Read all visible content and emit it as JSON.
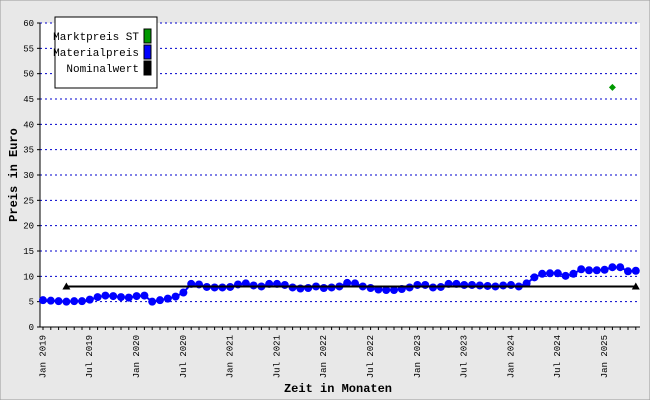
{
  "chart_data": {
    "type": "line",
    "ylabel": "Preis in Euro",
    "xlabel": "Zeit in Monaten",
    "categories": [
      "Jan 2019",
      null,
      null,
      null,
      null,
      null,
      "Jul 2019",
      null,
      null,
      null,
      null,
      null,
      "Jan 2020",
      null,
      null,
      null,
      null,
      null,
      "Jul 2020",
      null,
      null,
      null,
      null,
      null,
      "Jan 2021",
      null,
      null,
      null,
      null,
      null,
      "Jul 2021",
      null,
      null,
      null,
      null,
      null,
      "Jan 2022",
      null,
      null,
      null,
      null,
      null,
      "Jul 2022",
      null,
      null,
      null,
      null,
      null,
      "Jan 2023",
      null,
      null,
      null,
      null,
      null,
      "Jul 2023",
      null,
      null,
      null,
      null,
      null,
      "Jan 2024",
      null,
      null,
      null,
      null,
      null,
      "Jul 2024",
      null,
      null,
      null,
      null,
      null,
      "Jan 2025",
      null,
      null,
      null,
      null
    ],
    "series": [
      {
        "name": "Marktpreis ST",
        "color": "#009900",
        "marker": "diamond",
        "values": [
          null,
          null,
          null,
          null,
          null,
          null,
          null,
          null,
          null,
          null,
          null,
          null,
          null,
          null,
          null,
          null,
          null,
          null,
          null,
          null,
          null,
          null,
          null,
          null,
          null,
          null,
          null,
          null,
          null,
          null,
          null,
          null,
          null,
          null,
          null,
          null,
          null,
          null,
          null,
          null,
          null,
          null,
          null,
          null,
          null,
          null,
          null,
          null,
          null,
          null,
          null,
          null,
          null,
          null,
          null,
          null,
          null,
          null,
          null,
          null,
          null,
          null,
          null,
          null,
          null,
          null,
          null,
          null,
          null,
          null,
          null,
          null,
          null,
          47.3,
          null,
          null,
          null
        ]
      },
      {
        "name": "Materialpreis",
        "color": "#0000ff",
        "marker": "circle",
        "values": [
          5.3,
          5.2,
          5.1,
          5.0,
          5.1,
          5.1,
          5.4,
          5.9,
          6.2,
          6.1,
          5.9,
          5.8,
          6.1,
          6.2,
          5.0,
          5.3,
          5.6,
          6.0,
          6.8,
          8.5,
          8.4,
          7.9,
          7.8,
          7.8,
          7.9,
          8.4,
          8.6,
          8.2,
          8.0,
          8.5,
          8.5,
          8.3,
          7.8,
          7.6,
          7.7,
          8.0,
          7.7,
          7.8,
          8.0,
          8.7,
          8.6,
          8.0,
          7.7,
          7.4,
          7.3,
          7.3,
          7.5,
          7.8,
          8.3,
          8.3,
          7.8,
          7.9,
          8.5,
          8.5,
          8.3,
          8.3,
          8.2,
          8.1,
          8.0,
          8.2,
          8.3,
          8.0,
          8.6,
          9.8,
          10.5,
          10.6,
          10.6,
          10.1,
          10.5,
          11.4,
          11.2,
          11.2,
          11.3,
          11.8,
          11.8,
          11.0,
          11.1
        ]
      },
      {
        "name": "Nominalwert",
        "color": "#000000",
        "marker": "triangle",
        "values": [
          null,
          null,
          null,
          8,
          8,
          8,
          8,
          8,
          8,
          8,
          8,
          8,
          8,
          8,
          8,
          8,
          8,
          8,
          8,
          8,
          8,
          8,
          8,
          8,
          8,
          8,
          8,
          8,
          8,
          8,
          8,
          8,
          8,
          8,
          8,
          8,
          8,
          8,
          8,
          8,
          8,
          8,
          8,
          8,
          8,
          8,
          8,
          8,
          8,
          8,
          8,
          8,
          8,
          8,
          8,
          8,
          8,
          8,
          8,
          8,
          8,
          8,
          8,
          8,
          8,
          8,
          8,
          8,
          8,
          8,
          8,
          8,
          8,
          8,
          8,
          8,
          8
        ]
      }
    ],
    "ylim": [
      0,
      60
    ],
    "yticks": [
      0,
      5,
      10,
      15,
      20,
      25,
      30,
      35,
      40,
      45,
      50,
      55,
      60
    ],
    "grid": true,
    "legend": "top-left"
  }
}
